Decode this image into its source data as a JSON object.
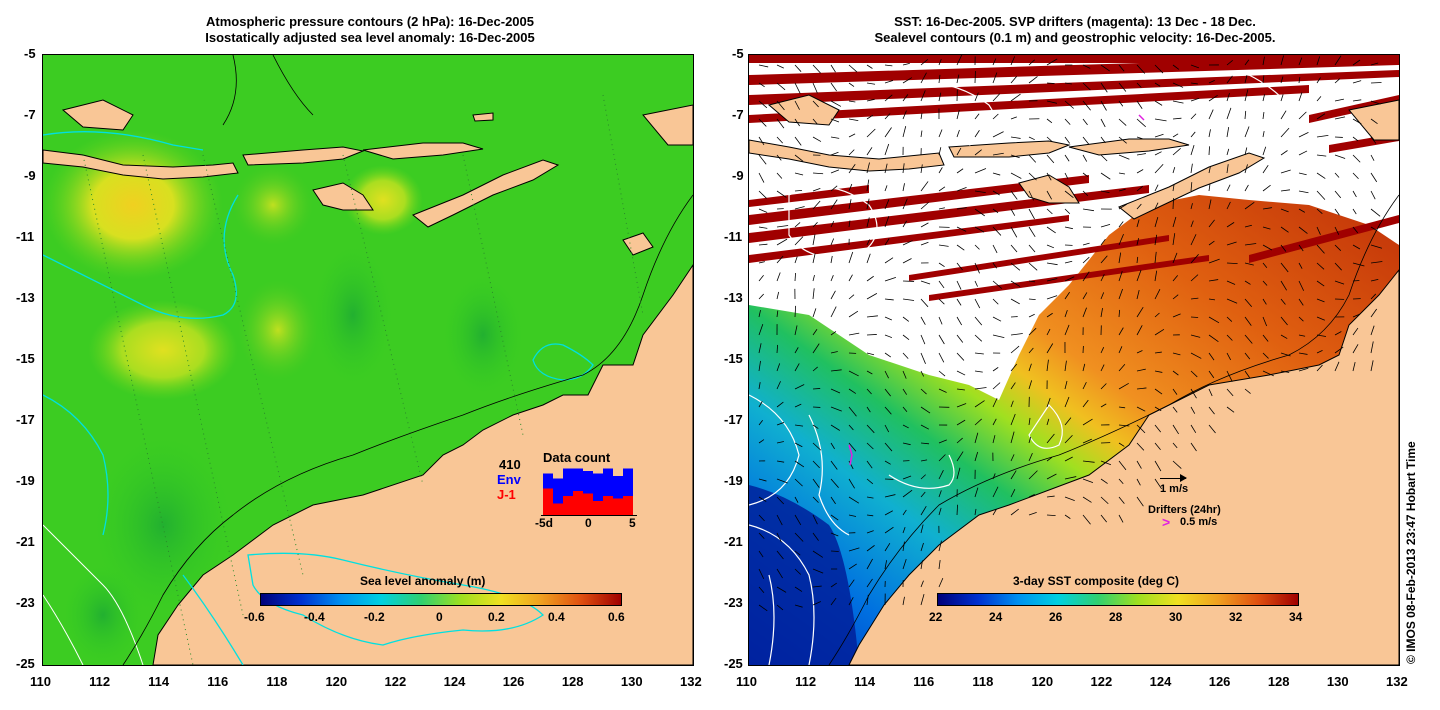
{
  "left_panel": {
    "title_line1": "Atmospheric pressure contours (2 hPa): 16-Dec-2005",
    "title_line2": "Isostatically adjusted sea level anomaly: 16-Dec-2005",
    "colorbar_title": "Sea level anomaly (m)",
    "colorbar_ticks": [
      "-0.6",
      "-0.4",
      "-0.2",
      "0",
      "0.2",
      "0.4",
      "0.6"
    ],
    "data_count": {
      "title": "Data count",
      "total": "410",
      "legend_env": "Env",
      "legend_j1": "J-1",
      "xticks": [
        "-5d",
        "0",
        "5"
      ],
      "env_values": [
        0.85,
        0.75,
        0.95,
        0.95,
        0.9,
        0.85,
        0.95,
        0.8,
        0.95
      ],
      "j1_values": [
        0.55,
        0.25,
        0.4,
        0.5,
        0.45,
        0.3,
        0.4,
        0.35,
        0.4
      ]
    }
  },
  "right_panel": {
    "title_line1": "SST: 16-Dec-2005. SVP drifters (magenta): 13 Dec - 18 Dec.",
    "title_line2": "Sealevel contours (0.1 m) and geostrophic velocity: 16-Dec-2005.",
    "colorbar_title": "3-day SST composite (deg C)",
    "colorbar_ticks": [
      "22",
      "24",
      "26",
      "28",
      "30",
      "32",
      "34"
    ],
    "velocity_scale": "1 m/s",
    "drifters_label": "Drifters (24hr)",
    "drifters_arrow": ">",
    "drifters_speed": "0.5 m/s"
  },
  "axes": {
    "y_ticks": [
      "-5",
      "-7",
      "-9",
      "-11",
      "-13",
      "-15",
      "-17",
      "-19",
      "-21",
      "-23",
      "-25"
    ],
    "x_ticks": [
      "110",
      "112",
      "114",
      "116",
      "118",
      "120",
      "122",
      "124",
      "126",
      "128",
      "130",
      "132"
    ]
  },
  "copyright": "© IMOS 08-Feb-2013 23:47 Hobart Time",
  "colors": {
    "land": "#f9c696",
    "ocean_green": "#33cc22",
    "cloud_red": "#a00000",
    "contour_cyan": "#00e0e0",
    "drifter_magenta": "#e020e0"
  }
}
